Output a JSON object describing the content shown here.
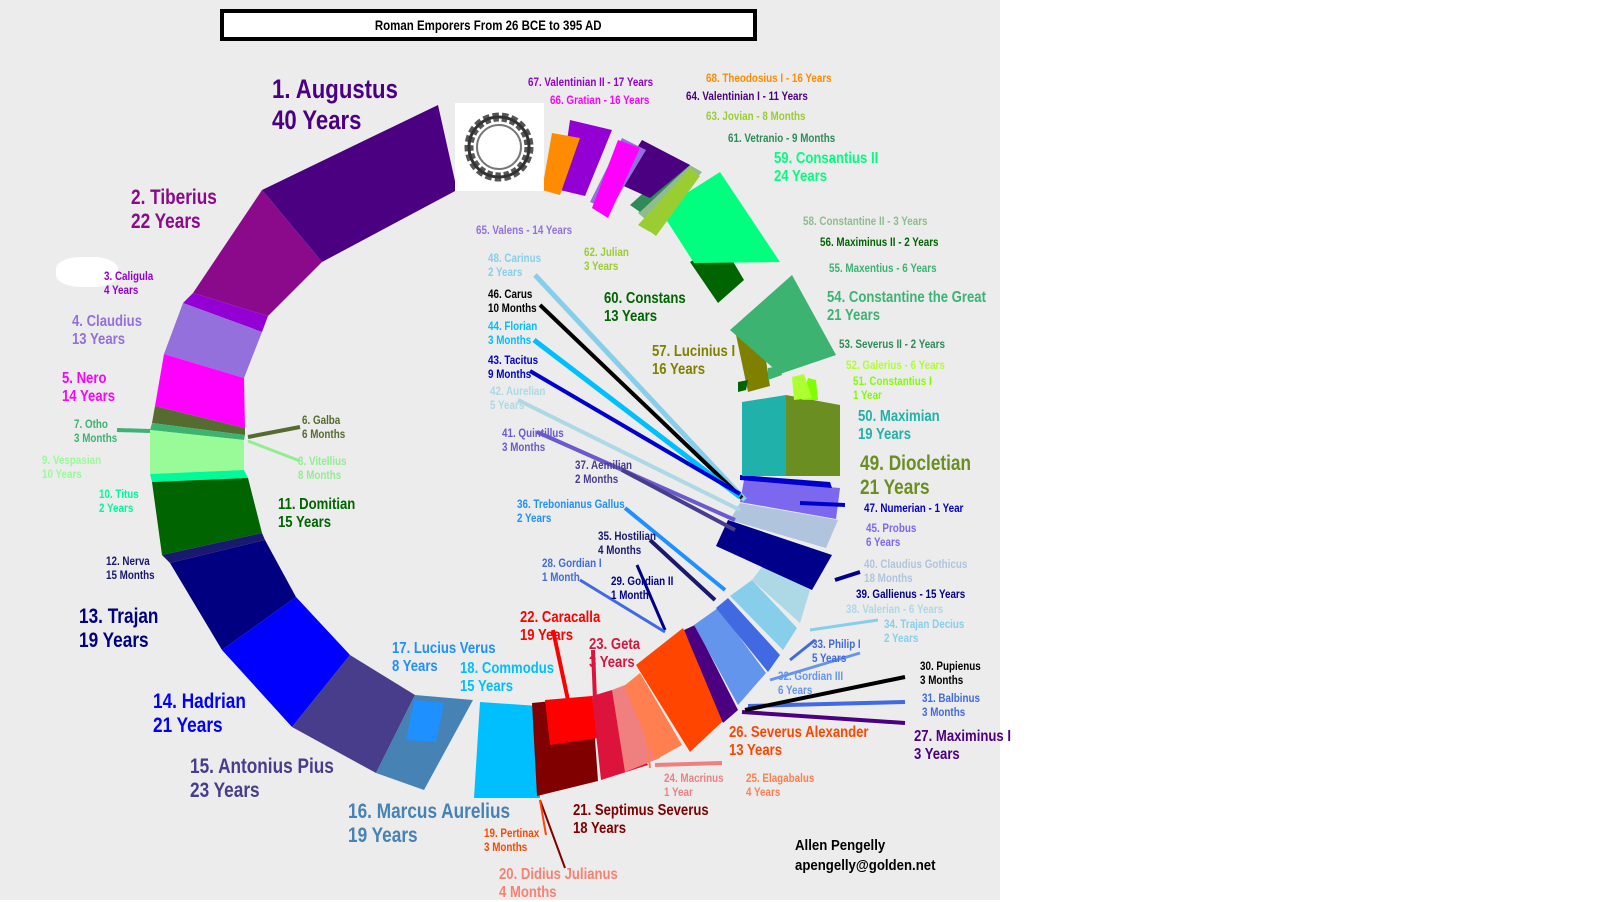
{
  "title": "Roman Emporers From 26 BCE to 395 AD",
  "author": {
    "name": "Allen Pengelly",
    "email": "apengelly@golden.net"
  },
  "emperors": [
    {
      "id": "augustus",
      "name": "1. Augustus",
      "duration": "40 Years",
      "color": "#4b0082"
    },
    {
      "id": "tiberius",
      "name": "2. Tiberius",
      "duration": "22 Years",
      "color": "#8b0a8b"
    },
    {
      "id": "caligula",
      "name": "3. Caligula",
      "duration": "4 Years",
      "color": "#9400d3"
    },
    {
      "id": "claudius",
      "name": "4. Claudius",
      "duration": "13 Years",
      "color": "#9370db"
    },
    {
      "id": "nero",
      "name": "5. Nero",
      "duration": "14 Years",
      "color": "#ff00ff"
    },
    {
      "id": "galba",
      "name": "6. Galba",
      "duration": "6 Months",
      "color": "#556b2f"
    },
    {
      "id": "otho",
      "name": "7. Otho",
      "duration": "3 Months",
      "color": "#3cb371"
    },
    {
      "id": "vitellius",
      "name": "8. Vitellius",
      "duration": "8 Months",
      "color": "#90ee90"
    },
    {
      "id": "vespasian",
      "name": "9. Vespasian",
      "duration": "10 Years",
      "color": "#98fb98"
    },
    {
      "id": "titus",
      "name": "10. Titus",
      "duration": "2 Years",
      "color": "#00fa9a"
    },
    {
      "id": "domitian",
      "name": "11. Domitian",
      "duration": "15 Years",
      "color": "#006400"
    },
    {
      "id": "nerva",
      "name": "12. Nerva",
      "duration": "15 Months",
      "color": "#191970"
    },
    {
      "id": "trajan",
      "name": "13. Trajan",
      "duration": "19 Years",
      "color": "#000080"
    },
    {
      "id": "hadrian",
      "name": "14. Hadrian",
      "duration": "21 Years",
      "color": "#0000ff"
    },
    {
      "id": "antonius-pius",
      "name": "15. Antonius Pius",
      "duration": "23 Years",
      "color": "#483d8b"
    },
    {
      "id": "marcus-aurelius",
      "name": "16. Marcus Aurelius",
      "duration": "19 Years",
      "color": "#4682b4"
    },
    {
      "id": "lucius-verus",
      "name": "17. Lucius Verus",
      "duration": "8 Years",
      "color": "#1e90ff"
    },
    {
      "id": "commodus",
      "name": "18. Commodus",
      "duration": "15 Years",
      "color": "#00bfff"
    },
    {
      "id": "pertinax",
      "name": "19. Pertinax",
      "duration": "3 Months",
      "color": "#ff4500"
    },
    {
      "id": "didius-julianus",
      "name": "20. Didius Julianus",
      "duration": "4 Months",
      "color": "#fa8072"
    },
    {
      "id": "septimus-severus",
      "name": "21. Septimus Severus",
      "duration": "18 Years",
      "color": "#800000"
    },
    {
      "id": "caracalla",
      "name": "22. Caracalla",
      "duration": "19 Years",
      "color": "#ff0000"
    },
    {
      "id": "geta",
      "name": "23. Geta",
      "duration": "3 Years",
      "color": "#dc143c"
    },
    {
      "id": "macrinus",
      "name": "24. Macrinus",
      "duration": "1 Year",
      "color": "#f08080"
    },
    {
      "id": "elagabalus",
      "name": "25. Elagabalus",
      "duration": "4 Years",
      "color": "#ff7f50"
    },
    {
      "id": "severus-alexander",
      "name": "26. Severus Alexander",
      "duration": "13 Years",
      "color": "#ff4500"
    },
    {
      "id": "maximinus-i",
      "name": "27. Maximinus I",
      "duration": "3 Years",
      "color": "#4b0082"
    },
    {
      "id": "gordian-i",
      "name": "28. Gordian I",
      "duration": "1 Month",
      "color": "#4169e1"
    },
    {
      "id": "gordian-ii",
      "name": "29. Gordian II",
      "duration": "1 Month",
      "color": "#00008b"
    },
    {
      "id": "pupienus",
      "name": "30. Pupienus",
      "duration": "3 Months",
      "color": "#000000"
    },
    {
      "id": "balbinus",
      "name": "31. Balbinus",
      "duration": "3 Months",
      "color": "#4169e1"
    },
    {
      "id": "gordian-iii",
      "name": "32. Gordian III",
      "duration": "6 Years",
      "color": "#6495ed"
    },
    {
      "id": "philip-i",
      "name": "33. Philip I",
      "duration": "5 Years",
      "color": "#4169e1"
    },
    {
      "id": "trajan-decius",
      "name": "34. Trajan Decius",
      "duration": "2 Years",
      "color": "#87ceeb"
    },
    {
      "id": "hostilian",
      "name": "35. Hostilian",
      "duration": "4 Months",
      "color": "#191970"
    },
    {
      "id": "trebonianus-gallus",
      "name": "36. Trebonianus Gallus",
      "duration": "2 Years",
      "color": "#1e90ff"
    },
    {
      "id": "aemilian",
      "name": "37. Aemilian",
      "duration": "2 Months",
      "color": "#483d8b"
    },
    {
      "id": "valerian",
      "name": "38. Valerian",
      "duration": "6 Years",
      "color": "#add8e6"
    },
    {
      "id": "gallienus",
      "name": "39. Gallienus",
      "duration": "15 Years",
      "color": "#00008b"
    },
    {
      "id": "claudius-gothicus",
      "name": "40. Claudius Gothicus",
      "duration": "18 Months",
      "color": "#b0c4de"
    },
    {
      "id": "quintillus",
      "name": "41. Quintillus",
      "duration": "3 Months",
      "color": "#6a5acd"
    },
    {
      "id": "aurelian",
      "name": "42. Aurelian",
      "duration": "5 Years",
      "color": "#add8e6"
    },
    {
      "id": "tacitus",
      "name": "43. Tacitus",
      "duration": "9 Months",
      "color": "#0000cd"
    },
    {
      "id": "florian",
      "name": "44. Florian",
      "duration": "3 Months",
      "color": "#00bfff"
    },
    {
      "id": "probus",
      "name": "45. Probus",
      "duration": "6 Years",
      "color": "#7b68ee"
    },
    {
      "id": "carus",
      "name": "46. Carus",
      "duration": "10 Months",
      "color": "#000000"
    },
    {
      "id": "numerian",
      "name": "47. Numerian",
      "duration": "1 Year",
      "color": "#0000cd"
    },
    {
      "id": "carinus",
      "name": "48. Carinus",
      "duration": "2 Years",
      "color": "#87ceeb"
    },
    {
      "id": "diocletian",
      "name": "49. Diocletian",
      "duration": "21 Years",
      "color": "#6b8e23"
    },
    {
      "id": "maximian",
      "name": "50. Maximian",
      "duration": "19 Years",
      "color": "#20b2aa"
    },
    {
      "id": "constantius-i",
      "name": "51. Constantius I",
      "duration": "1 Year",
      "color": "#7fff00"
    },
    {
      "id": "galerius",
      "name": "52. Galerius",
      "duration": "6 Years",
      "color": "#adff2f"
    },
    {
      "id": "severus-ii",
      "name": "53. Severus II",
      "duration": "2 Years",
      "color": "#2e8b57"
    },
    {
      "id": "constantine-the-great",
      "name": "54. Constantine the Great",
      "duration": "21 Years",
      "color": "#3cb371"
    },
    {
      "id": "maxentius",
      "name": "55. Maxentius",
      "duration": "6 Years",
      "color": "#3cb371"
    },
    {
      "id": "maximinus-ii",
      "name": "56. Maximinus II",
      "duration": "2 Years",
      "color": "#006400"
    },
    {
      "id": "lucinius-i",
      "name": "57. Lucinius I",
      "duration": "16 Years",
      "color": "#808000"
    },
    {
      "id": "constantine-ii",
      "name": "58. Constantine II",
      "duration": "3 Years",
      "color": "#8fbc8f"
    },
    {
      "id": "consantius-ii",
      "name": "59. Consantius II",
      "duration": "24 Years",
      "color": "#00ff7f"
    },
    {
      "id": "constans",
      "name": "60. Constans",
      "duration": "13 Years",
      "color": "#006400"
    },
    {
      "id": "vetranio",
      "name": "61. Vetranio",
      "duration": "9 Months",
      "color": "#2e8b57"
    },
    {
      "id": "julian",
      "name": "62. Julian",
      "duration": "3 Years",
      "color": "#9acd32"
    },
    {
      "id": "jovian",
      "name": "63. Jovian",
      "duration": "8 Months",
      "color": "#9acd32"
    },
    {
      "id": "valentinian-i",
      "name": "64. Valentinian I",
      "duration": "11 Years",
      "color": "#4b0082"
    },
    {
      "id": "valens",
      "name": "65. Valens",
      "duration": "14 Years",
      "color": "#9370db"
    },
    {
      "id": "gratian",
      "name": "66. Gratian",
      "duration": "16 Years",
      "color": "#ff00ff"
    },
    {
      "id": "valentinian-ii",
      "name": "67. Valentinian II",
      "duration": "17 Years",
      "color": "#9400d3"
    },
    {
      "id": "theodosius-i",
      "name": "68. Theodosius I",
      "duration": "16 Years",
      "color": "#ff8c00"
    }
  ]
}
